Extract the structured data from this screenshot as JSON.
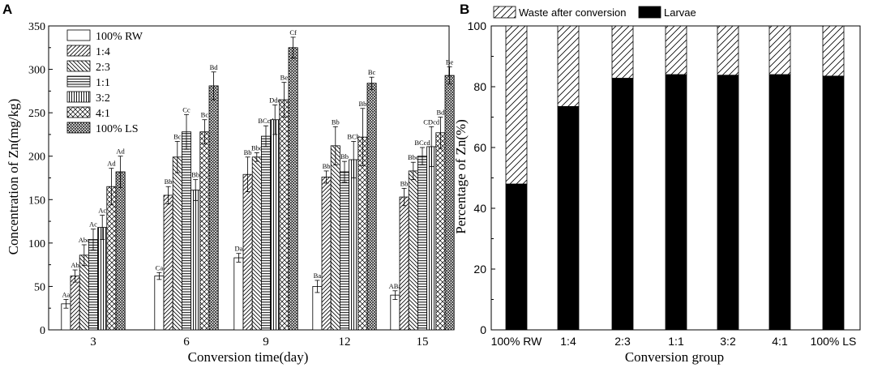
{
  "chart_data": [
    {
      "panel": "A",
      "type": "bar",
      "title": "",
      "xlabel": "Conversion time(day)",
      "ylabel": "Concentration of Zn(mg/kg)",
      "ylim": [
        0,
        350
      ],
      "yticks": [
        "0",
        "50",
        "100",
        "150",
        "200",
        "250",
        "300",
        "350"
      ],
      "categories": [
        "3",
        "6",
        "9",
        "12",
        "15"
      ],
      "legend_position": "top-left",
      "grid": false,
      "series": [
        {
          "name": "100% RW",
          "pattern": "none",
          "values": [
            30,
            62,
            83,
            50,
            40
          ],
          "errors": [
            5,
            4,
            5,
            7,
            5
          ],
          "labels": [
            "Aa",
            "Ca",
            "Da",
            "Ba",
            "ABa"
          ]
        },
        {
          "name": "1:4",
          "pattern": "fwd-diag",
          "values": [
            62,
            155,
            179,
            176,
            153
          ],
          "errors": [
            7,
            10,
            20,
            7,
            10
          ],
          "labels": [
            "Ab",
            "Bb",
            "Bb",
            "Bb",
            "Bb"
          ]
        },
        {
          "name": "2:3",
          "pattern": "back-diag",
          "values": [
            86,
            199,
            199,
            212,
            183
          ],
          "errors": [
            12,
            18,
            5,
            22,
            10
          ],
          "labels": [
            "Abc",
            "Bc",
            "Bbc",
            "Bb",
            "Bbc"
          ]
        },
        {
          "name": "1:1",
          "pattern": "horizontal",
          "values": [
            104,
            228,
            223,
            182,
            200
          ],
          "errors": [
            12,
            20,
            12,
            12,
            10
          ],
          "labels": [
            "Ac",
            "Cc",
            "BCcd",
            "Bb",
            "BCcd"
          ]
        },
        {
          "name": "3:2",
          "pattern": "vertical",
          "values": [
            118,
            161,
            242,
            196,
            211
          ],
          "errors": [
            14,
            12,
            17,
            21,
            23
          ],
          "labels": [
            "Ac",
            "Bb",
            "Dde",
            "BCb",
            "CDcd"
          ]
        },
        {
          "name": "4:1",
          "pattern": "cross-diag",
          "values": [
            165,
            228,
            265,
            222,
            227
          ],
          "errors": [
            21,
            14,
            20,
            33,
            18
          ],
          "labels": [
            "Ad",
            "Bc",
            "Be",
            "Bb",
            "Bd"
          ]
        },
        {
          "name": "100% LS",
          "pattern": "dense-cross",
          "values": [
            182,
            281,
            325,
            284,
            293
          ],
          "errors": [
            18,
            16,
            12,
            7,
            10
          ],
          "labels": [
            "Ad",
            "Bd",
            "Cf",
            "Bc",
            "Be"
          ]
        }
      ]
    },
    {
      "panel": "B",
      "type": "bar",
      "stacked": true,
      "title": "",
      "xlabel": "Conversion group",
      "ylabel": "Percentage of Zn(%)",
      "ylim": [
        0,
        100
      ],
      "yticks": [
        "0",
        "20",
        "40",
        "60",
        "80",
        "100"
      ],
      "categories": [
        "100% RW",
        "1:4",
        "2:3",
        "1:1",
        "3:2",
        "4:1",
        "100% LS"
      ],
      "legend_position": "top",
      "grid": false,
      "series": [
        {
          "name": "Larvae",
          "pattern": "solid-black",
          "values": [
            48,
            73.5,
            82.8,
            84,
            83.8,
            84,
            83.5
          ]
        },
        {
          "name": "Waste after conversion",
          "pattern": "fwd-diag",
          "values": [
            52,
            26.5,
            17.2,
            16,
            16.2,
            16,
            16.5
          ]
        }
      ]
    }
  ],
  "panel_labels": [
    "A",
    "B"
  ],
  "colors": {
    "ink": "#000000",
    "paper": "#ffffff"
  }
}
